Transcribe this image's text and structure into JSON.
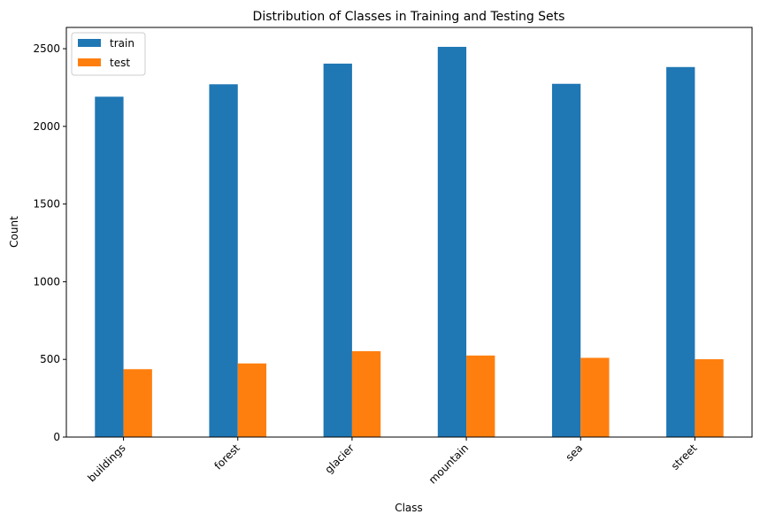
{
  "chart_data": {
    "type": "bar",
    "title": "Distribution of Classes in Training and Testing Sets",
    "xlabel": "Class",
    "ylabel": "Count",
    "categories": [
      "buildings",
      "forest",
      "glacier",
      "mountain",
      "sea",
      "street"
    ],
    "series": [
      {
        "name": "train",
        "color": "#1f77b4",
        "values": [
          2191,
          2271,
          2404,
          2512,
          2274,
          2382
        ]
      },
      {
        "name": "test",
        "color": "#ff7f0e",
        "values": [
          437,
          474,
          553,
          525,
          510,
          501
        ]
      }
    ],
    "ylim": [
      0,
      2637
    ],
    "yticks": [
      0,
      500,
      1000,
      1500,
      2000,
      2500
    ],
    "legend_position": "top-left",
    "grid": false
  }
}
